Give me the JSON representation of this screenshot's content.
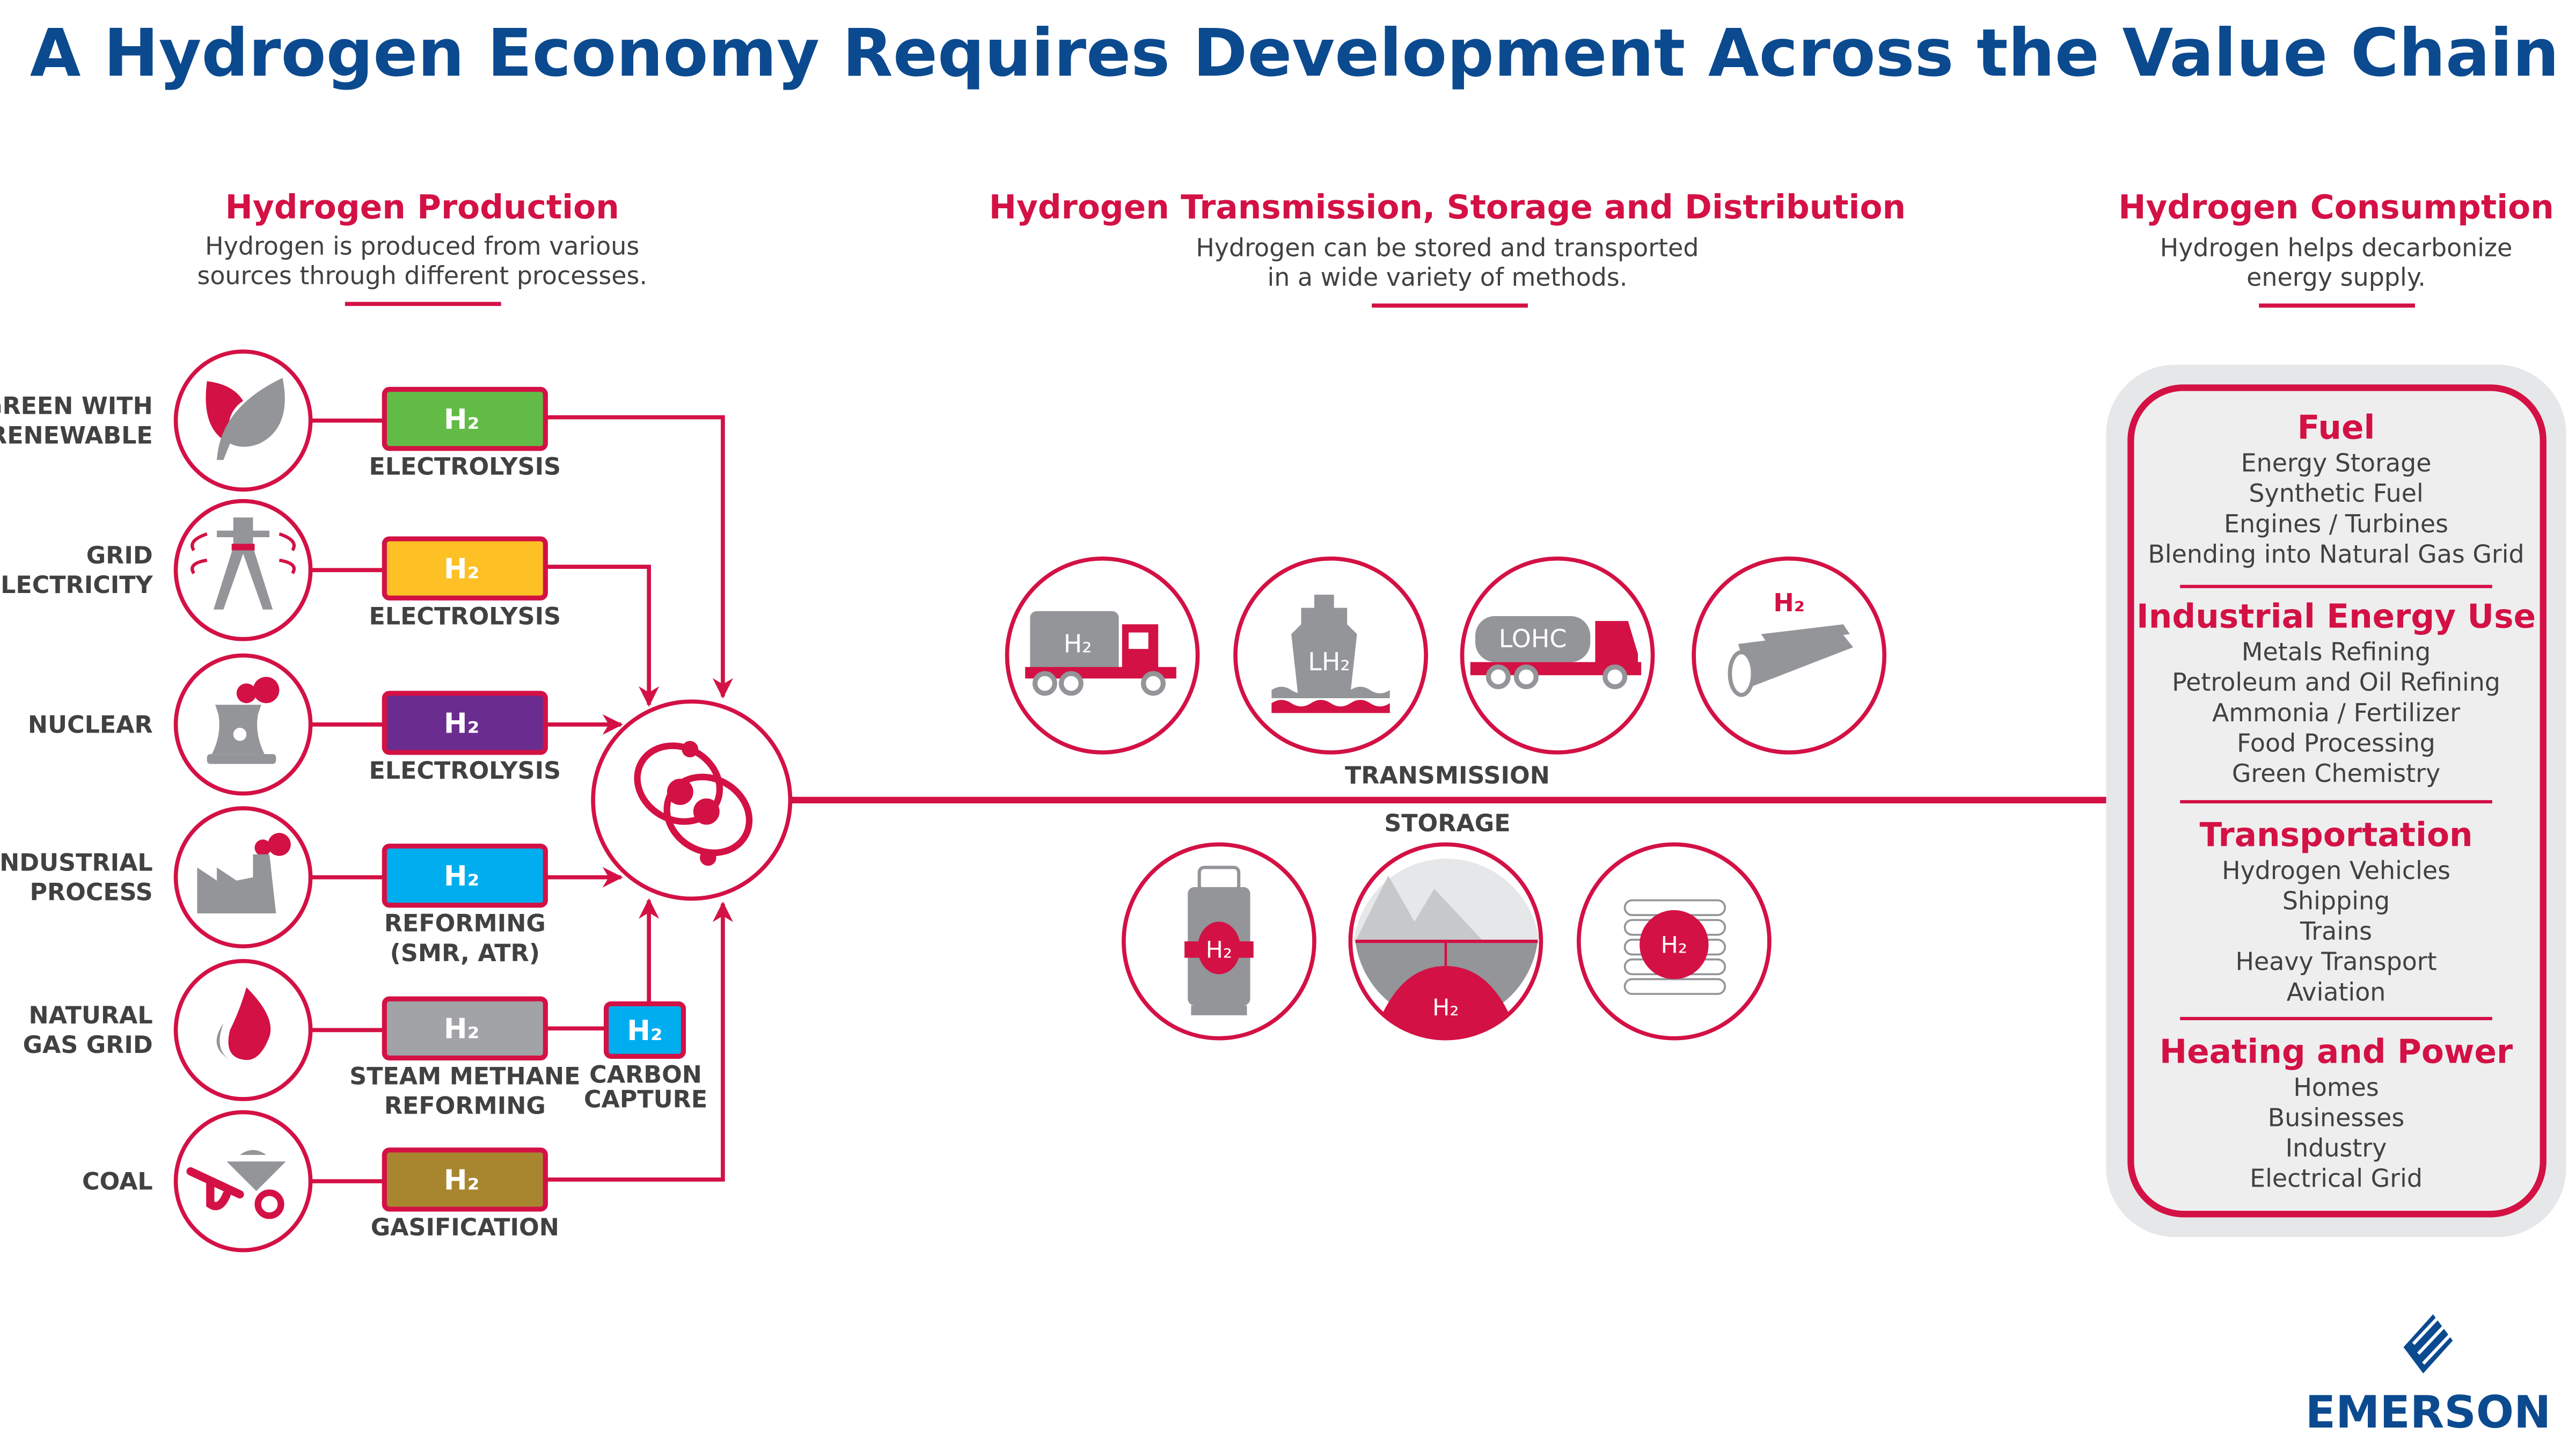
{
  "title": "A Hydrogen Economy Requires Development Across the Value Chain",
  "colors": {
    "accent": "#d31145",
    "title": "#0b4a8f",
    "icon_gray": "#939598",
    "panel": "#e6e7e8"
  },
  "production": {
    "heading": "Hydrogen Production",
    "subtitle": [
      "Hydrogen is produced from various",
      "sources through different processes."
    ],
    "h2_label": "H₂",
    "rows": [
      {
        "source": [
          "GREEN WITH",
          "RENEWABLE"
        ],
        "icon": "leaf-icon",
        "color": "#62bb46",
        "process": [
          "ELECTROLYSIS"
        ]
      },
      {
        "source": [
          "GRID",
          "ELECTRICITY"
        ],
        "icon": "power-tower-icon",
        "color": "#fdc125",
        "process": [
          "ELECTROLYSIS"
        ]
      },
      {
        "source": [
          "NUCLEAR"
        ],
        "icon": "nuclear-plant-icon",
        "color": "#6b2c8f",
        "process": [
          "ELECTROLYSIS"
        ]
      },
      {
        "source": [
          "INDUSTRIAL",
          "PROCESS"
        ],
        "icon": "factory-icon",
        "color": "#00aeef",
        "process": [
          "REFORMING",
          "(SMR, ATR)"
        ]
      },
      {
        "source": [
          "NATURAL",
          "GAS GRID"
        ],
        "icon": "flame-icon",
        "color": "#a1a3a6",
        "process": [
          "STEAM METHANE",
          "REFORMING"
        ]
      },
      {
        "source": [
          "COAL"
        ],
        "icon": "coal-cart-icon",
        "color": "#a8862f",
        "process": [
          "GASIFICATION"
        ]
      }
    ],
    "carbon_capture": {
      "label": [
        "CARBON",
        "CAPTURE"
      ],
      "color": "#00aeef"
    }
  },
  "transmission": {
    "heading": "Hydrogen Transmission, Storage and Distribution",
    "subtitle": [
      "Hydrogen can be stored and transported",
      "in a wide variety of methods."
    ],
    "transmission_label": "TRANSMISSION",
    "storage_label": "STORAGE",
    "tube_trailer_text": "H₂",
    "ship_text": "LH₂",
    "lohc_text": "LOHC",
    "pipeline_text": "H₂",
    "tank_text": "H₂",
    "underground_text": "H₂",
    "tubes_text": "H₂"
  },
  "consumption": {
    "heading": "Hydrogen Consumption",
    "subtitle": [
      "Hydrogen helps decarbonize",
      "energy supply."
    ],
    "groups": [
      {
        "title": "Fuel",
        "items": [
          "Energy Storage",
          "Synthetic Fuel",
          "Engines / Turbines",
          "Blending into Natural Gas Grid"
        ]
      },
      {
        "title": "Industrial Energy Use",
        "items": [
          "Metals Refining",
          "Petroleum and Oil Refining",
          "Ammonia / Fertilizer",
          "Food Processing",
          "Green Chemistry"
        ]
      },
      {
        "title": "Transportation",
        "items": [
          "Hydrogen Vehicles",
          "Shipping",
          "Trains",
          "Heavy Transport",
          "Aviation"
        ]
      },
      {
        "title": "Heating and Power",
        "items": [
          "Homes",
          "Businesses",
          "Industry",
          "Electrical Grid"
        ]
      }
    ]
  },
  "logo": "EMERSON"
}
